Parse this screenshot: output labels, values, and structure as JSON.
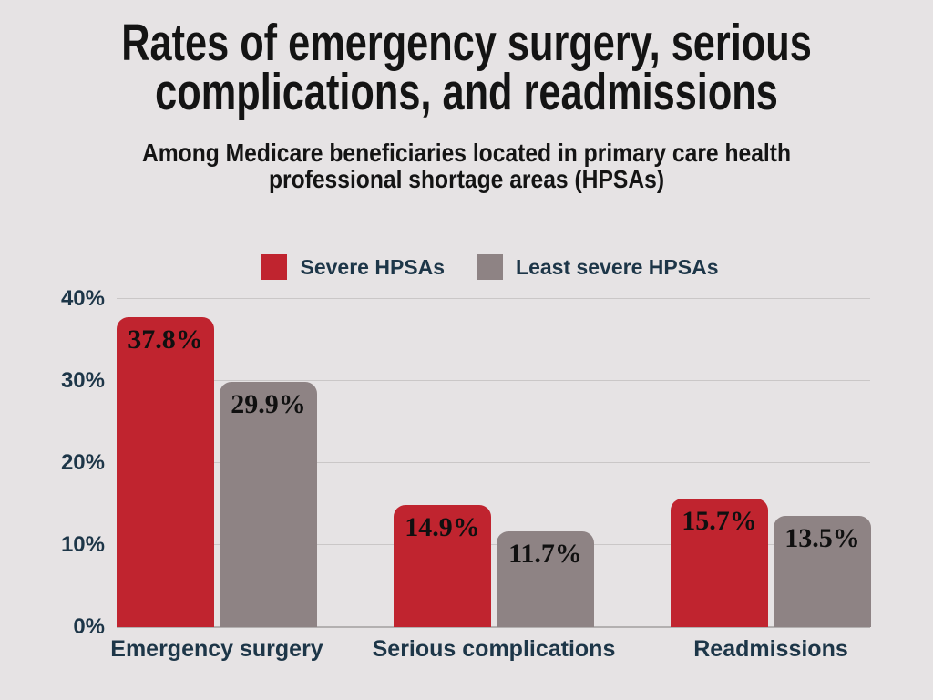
{
  "poster": {
    "background": "#e6e3e4"
  },
  "title_lines": [
    "Rates of emergency surgery, serious",
    "complications, and readmissions"
  ],
  "subtitle_lines": [
    "Among Medicare beneficiaries located in primary care health",
    "professional shortage areas (HPSAs)"
  ],
  "legend": {
    "items": [
      {
        "label": "Severe HPSAs",
        "color": "#c0242f"
      },
      {
        "label": "Least severe HPSAs",
        "color": "#8e8384"
      }
    ]
  },
  "chart_data": {
    "type": "bar",
    "title": "Rates of emergency surgery, serious complications, and readmissions",
    "subtitle": "Among Medicare beneficiaries located in primary care health professional shortage areas (HPSAs)",
    "categories": [
      "Emergency surgery",
      "Serious complications",
      "Readmissions"
    ],
    "series": [
      {
        "name": "Severe HPSAs",
        "color": "#c0242f",
        "values": [
          37.8,
          14.9,
          15.7
        ],
        "labels": [
          "37.8%",
          "14.9%",
          "15.7%"
        ]
      },
      {
        "name": "Least severe HPSAs",
        "color": "#8e8384",
        "values": [
          29.9,
          11.7,
          13.5
        ],
        "labels": [
          "29.9%",
          "11.7%",
          "13.5%"
        ]
      }
    ],
    "y_ticks": [
      {
        "value": 0,
        "label": "0%"
      },
      {
        "value": 10,
        "label": "10%"
      },
      {
        "value": 20,
        "label": "20%"
      },
      {
        "value": 30,
        "label": "30%"
      },
      {
        "value": 40,
        "label": "40%"
      }
    ],
    "ylim": [
      0,
      40
    ],
    "grid": true,
    "legend_position": "top",
    "colors": {
      "grid": "#cac7c7",
      "axis": "#b3b0b0",
      "tick_text": "#1d3648",
      "value_label": "#101010"
    }
  }
}
